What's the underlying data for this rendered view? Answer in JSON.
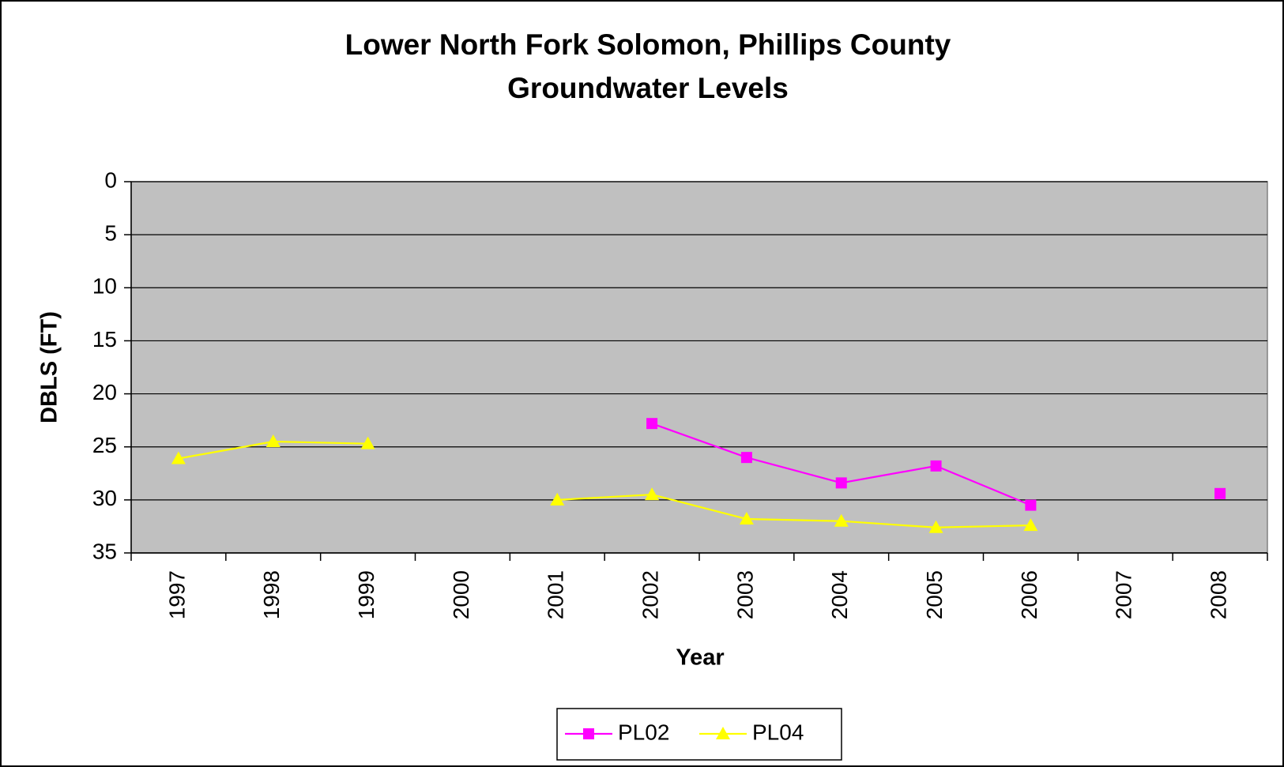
{
  "chart_data": {
    "type": "line",
    "title": [
      "Lower North Fork Solomon, Phillips County",
      "Groundwater Levels"
    ],
    "x_label": "Year",
    "y_label": "DBLS (FT)",
    "categories": [
      "1997",
      "1998",
      "1999",
      "2000",
      "2001",
      "2002",
      "2003",
      "2004",
      "2005",
      "2006",
      "2007",
      "2008"
    ],
    "series": [
      {
        "name": "PL02",
        "color": "#ff00ff",
        "marker": "square",
        "values": [
          null,
          null,
          null,
          null,
          null,
          22.8,
          26.0,
          28.4,
          26.8,
          30.5,
          null,
          29.4
        ]
      },
      {
        "name": "PL04",
        "color": "#ffff00",
        "marker": "triangle",
        "values": [
          26.1,
          24.5,
          24.7,
          null,
          30.0,
          29.5,
          31.8,
          32.0,
          32.6,
          32.4,
          null,
          null
        ]
      }
    ],
    "ylim": [
      0,
      35
    ],
    "yticks": [
      0,
      5,
      10,
      15,
      20,
      25,
      30,
      35
    ],
    "y_reversed": true,
    "grid": true,
    "plot_background": "#c0c0c0",
    "legend": "bottom"
  }
}
